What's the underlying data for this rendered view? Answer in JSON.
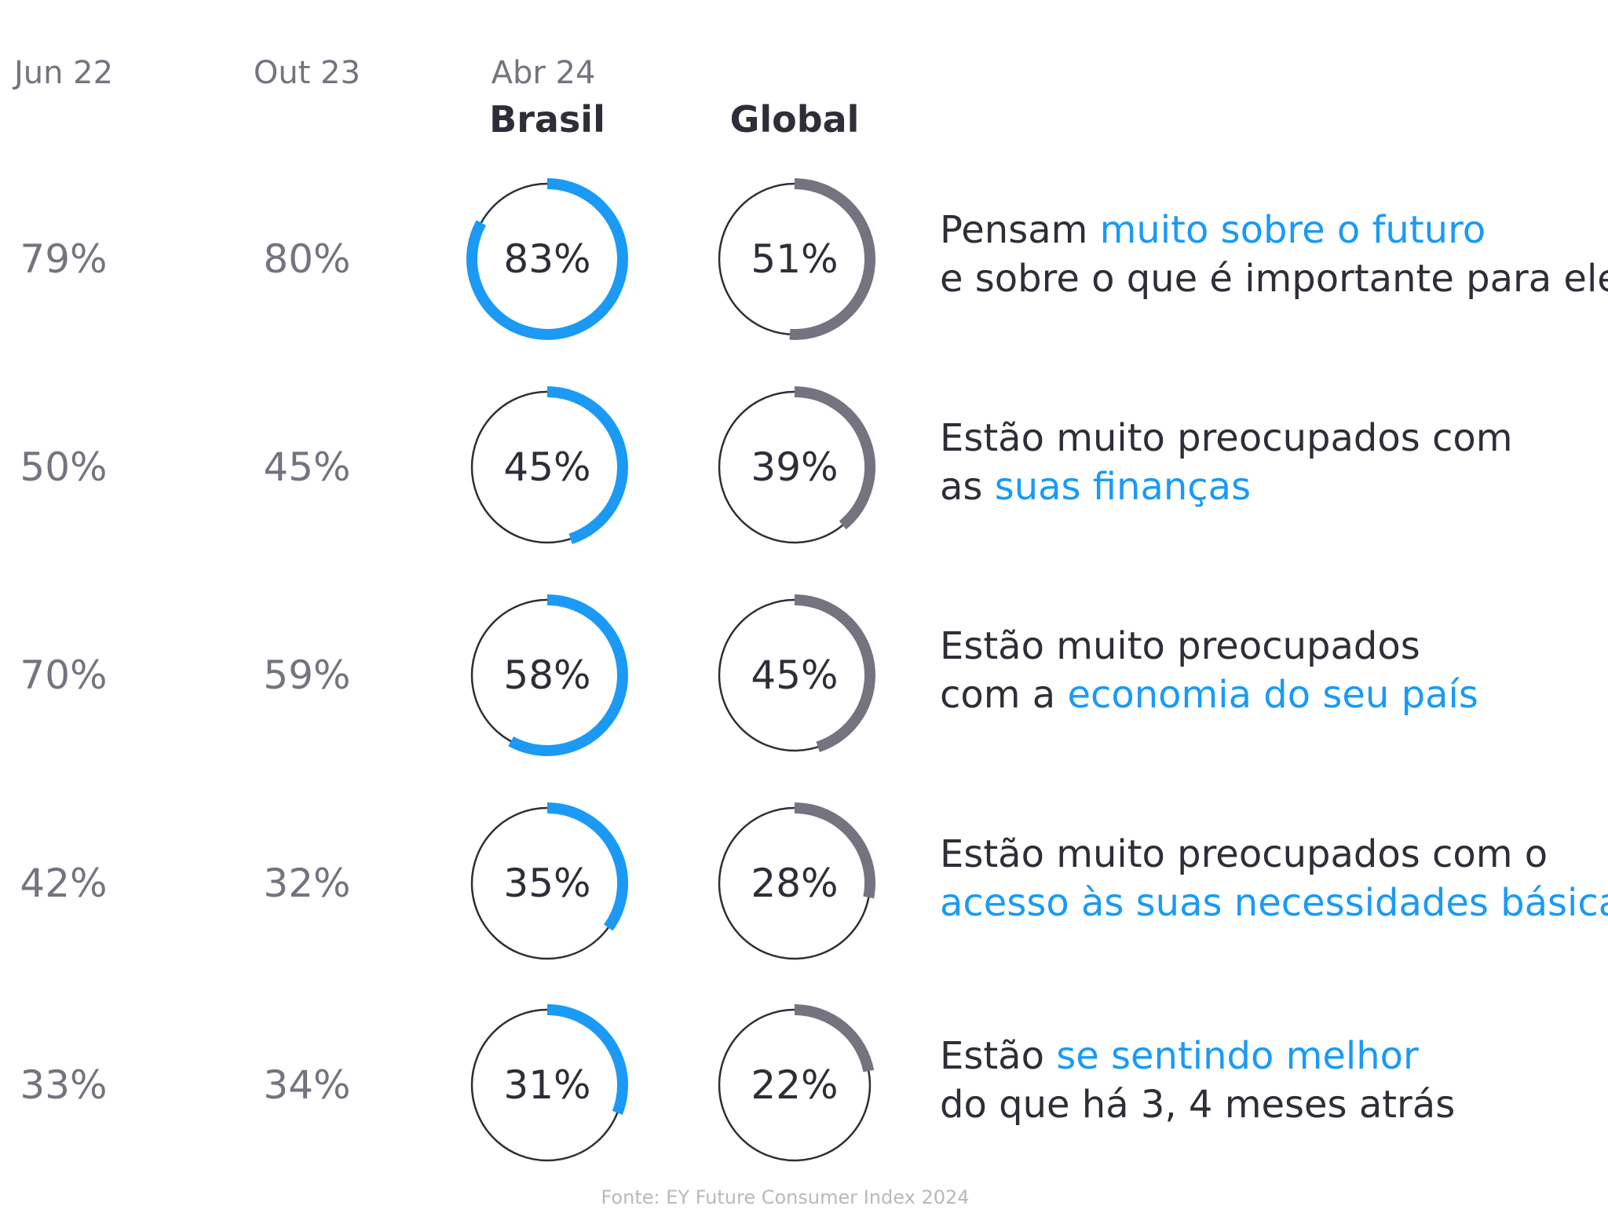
{
  "colors": {
    "brasil": "#1a9af5",
    "global": "#747480",
    "ring_track": "#2e2e38",
    "text_dark": "#2e2e38",
    "text_muted": "#747480",
    "highlight": "#1a9af5",
    "source": "#b8b8bf"
  },
  "chart_data": {
    "type": "donut-table",
    "title": "",
    "columns": {
      "jun22": "Jun 22",
      "out23": "Out 23",
      "abr24": "Abr 24",
      "brasil": "Brasil",
      "global": "Global"
    },
    "rows": [
      {
        "jun22": "79%",
        "out23": "80%",
        "brasil": 83,
        "brasil_label": "83%",
        "global": 51,
        "global_label": "51%",
        "line1": [
          {
            "text": "Pensam ",
            "hl": false
          },
          {
            "text": "muito sobre o futuro",
            "hl": true
          }
        ],
        "line2": [
          {
            "text": "e sobre o que é importante para eles",
            "hl": false
          }
        ]
      },
      {
        "jun22": "50%",
        "out23": "45%",
        "brasil": 45,
        "brasil_label": "45%",
        "global": 39,
        "global_label": "39%",
        "line1": [
          {
            "text": "Estão muito preocupados com",
            "hl": false
          }
        ],
        "line2": [
          {
            "text": "as ",
            "hl": false
          },
          {
            "text": "suas finanças",
            "hl": true
          }
        ]
      },
      {
        "jun22": "70%",
        "out23": "59%",
        "brasil": 58,
        "brasil_label": "58%",
        "global": 45,
        "global_label": "45%",
        "line1": [
          {
            "text": "Estão muito preocupados",
            "hl": false
          }
        ],
        "line2": [
          {
            "text": "com a ",
            "hl": false
          },
          {
            "text": "economia do seu país",
            "hl": true
          }
        ]
      },
      {
        "jun22": "42%",
        "out23": "32%",
        "brasil": 35,
        "brasil_label": "35%",
        "global": 28,
        "global_label": "28%",
        "line1": [
          {
            "text": "Estão muito preocupados com o",
            "hl": false
          }
        ],
        "line2": [
          {
            "text": "acesso às suas necessidades básicas",
            "hl": true
          }
        ]
      },
      {
        "jun22": "33%",
        "out23": "34%",
        "brasil": 31,
        "brasil_label": "31%",
        "global": 22,
        "global_label": "22%",
        "line1": [
          {
            "text": "Estão ",
            "hl": false
          },
          {
            "text": "se sentindo melhor",
            "hl": true
          }
        ],
        "line2": [
          {
            "text": "do que há 3, 4 meses atrás",
            "hl": false
          }
        ]
      }
    ],
    "source": "Fonte: EY Future Consumer Index 2024"
  }
}
